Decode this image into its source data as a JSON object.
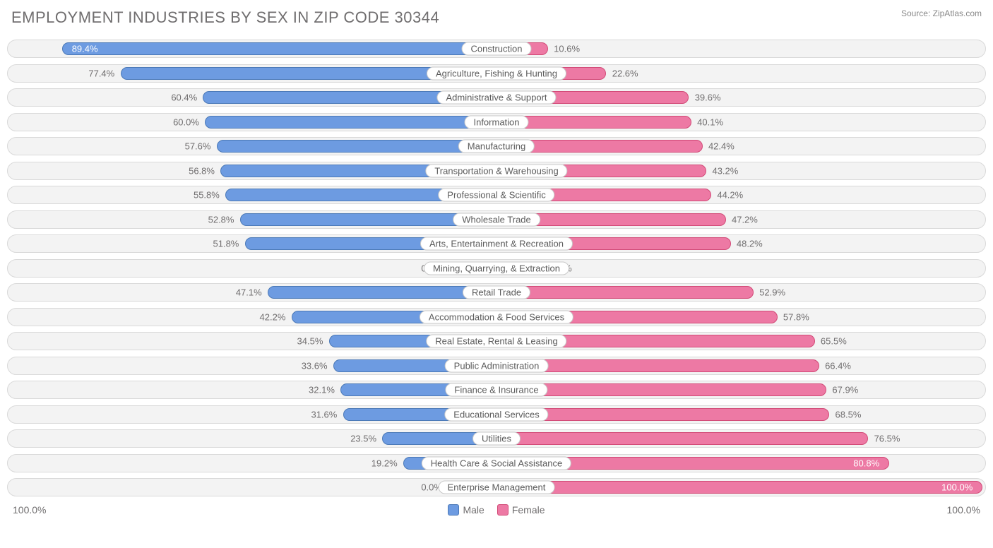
{
  "title": "EMPLOYMENT INDUSTRIES BY SEX IN ZIP CODE 30344",
  "source_prefix": "Source: ",
  "source_name": "ZipAtlas.com",
  "axis_left": "100.0%",
  "axis_right": "100.0%",
  "legend": {
    "male": "Male",
    "female": "Female"
  },
  "colors": {
    "male_fill": "#6d9be1",
    "male_border": "#4b79b7",
    "female_fill": "#ed79a4",
    "female_border": "#d24a77",
    "row_bg": "#f3f3f3",
    "row_border": "#d9d9d9",
    "text": "#706e6f",
    "page_bg": "#ffffff"
  },
  "chart": {
    "type": "diverging-bar",
    "male_label_inside_threshold": 80,
    "female_label_inside_threshold": 80,
    "placeholder_bar_pct": 10,
    "rows": [
      {
        "label": "Construction",
        "male": 89.4,
        "female": 10.6,
        "male_txt": "89.4%",
        "female_txt": "10.6%"
      },
      {
        "label": "Agriculture, Fishing & Hunting",
        "male": 77.4,
        "female": 22.6,
        "male_txt": "77.4%",
        "female_txt": "22.6%"
      },
      {
        "label": "Administrative & Support",
        "male": 60.4,
        "female": 39.6,
        "male_txt": "60.4%",
        "female_txt": "39.6%"
      },
      {
        "label": "Information",
        "male": 60.0,
        "female": 40.1,
        "male_txt": "60.0%",
        "female_txt": "40.1%"
      },
      {
        "label": "Manufacturing",
        "male": 57.6,
        "female": 42.4,
        "male_txt": "57.6%",
        "female_txt": "42.4%"
      },
      {
        "label": "Transportation & Warehousing",
        "male": 56.8,
        "female": 43.2,
        "male_txt": "56.8%",
        "female_txt": "43.2%"
      },
      {
        "label": "Professional & Scientific",
        "male": 55.8,
        "female": 44.2,
        "male_txt": "55.8%",
        "female_txt": "44.2%"
      },
      {
        "label": "Wholesale Trade",
        "male": 52.8,
        "female": 47.2,
        "male_txt": "52.8%",
        "female_txt": "47.2%"
      },
      {
        "label": "Arts, Entertainment & Recreation",
        "male": 51.8,
        "female": 48.2,
        "male_txt": "51.8%",
        "female_txt": "48.2%"
      },
      {
        "label": "Mining, Quarrying, & Extraction",
        "male": 0.0,
        "female": 0.0,
        "male_txt": "0.0%",
        "female_txt": "0.0%"
      },
      {
        "label": "Retail Trade",
        "male": 47.1,
        "female": 52.9,
        "male_txt": "47.1%",
        "female_txt": "52.9%"
      },
      {
        "label": "Accommodation & Food Services",
        "male": 42.2,
        "female": 57.8,
        "male_txt": "42.2%",
        "female_txt": "57.8%"
      },
      {
        "label": "Real Estate, Rental & Leasing",
        "male": 34.5,
        "female": 65.5,
        "male_txt": "34.5%",
        "female_txt": "65.5%"
      },
      {
        "label": "Public Administration",
        "male": 33.6,
        "female": 66.4,
        "male_txt": "33.6%",
        "female_txt": "66.4%"
      },
      {
        "label": "Finance & Insurance",
        "male": 32.1,
        "female": 67.9,
        "male_txt": "32.1%",
        "female_txt": "67.9%"
      },
      {
        "label": "Educational Services",
        "male": 31.6,
        "female": 68.5,
        "male_txt": "31.6%",
        "female_txt": "68.5%"
      },
      {
        "label": "Utilities",
        "male": 23.5,
        "female": 76.5,
        "male_txt": "23.5%",
        "female_txt": "76.5%"
      },
      {
        "label": "Health Care & Social Assistance",
        "male": 19.2,
        "female": 80.8,
        "male_txt": "19.2%",
        "female_txt": "80.8%"
      },
      {
        "label": "Enterprise Management",
        "male": 0.0,
        "female": 100.0,
        "male_txt": "0.0%",
        "female_txt": "100.0%"
      }
    ]
  }
}
